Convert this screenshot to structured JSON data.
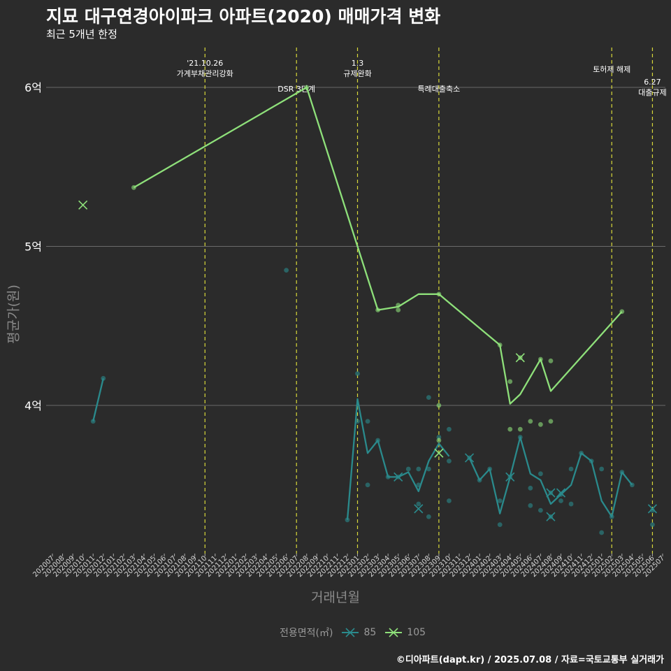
{
  "chart_data": {
    "type": "line",
    "title": "지묘 대구연경아이파크 아파트(2020) 매매가격 변화",
    "subtitle": "최근 5개년 한정",
    "xlabel": "거래년월",
    "ylabel": "평균가(원)",
    "caption": "©디아파트(dapt.kr) / 2025.07.08 / 자료=국토교통부 실거래가",
    "legend_title": "전용면적(㎡)",
    "grid": true,
    "legend_position": "bottom",
    "x_ticks": [
      "202007",
      "202008",
      "202009",
      "202010",
      "202011",
      "202012",
      "202101",
      "202102",
      "202103",
      "202104",
      "202105",
      "202106",
      "202107",
      "202108",
      "202109",
      "202110",
      "202111",
      "202112",
      "202201",
      "202202",
      "202203",
      "202204",
      "202205",
      "202206",
      "202207",
      "202208",
      "202209",
      "202210",
      "202211",
      "202212",
      "202301",
      "202302",
      "202303",
      "202304",
      "202305",
      "202306",
      "202307",
      "202308",
      "202309",
      "202310",
      "202311",
      "202312",
      "202401",
      "202402",
      "202403",
      "202404",
      "202405",
      "202406",
      "202407",
      "202408",
      "202409",
      "202410",
      "202411",
      "202412",
      "202501",
      "202502",
      "202503",
      "202504",
      "202505",
      "202506",
      "202507"
    ],
    "y_ticks": [
      {
        "value": 4,
        "label": "4억"
      },
      {
        "value": 5,
        "label": "5억"
      },
      {
        "value": 6,
        "label": "6억"
      }
    ],
    "ylim": [
      3.05,
      6.25
    ],
    "events": [
      {
        "x": "202110",
        "lines": [
          "'21.10.26",
          "가계부채관리강화"
        ],
        "pos": "top"
      },
      {
        "x": "202207",
        "lines": [
          "DSR 3단계"
        ],
        "pos": "low"
      },
      {
        "x": "202301",
        "lines": [
          "1.3",
          "규제완화"
        ],
        "pos": "top"
      },
      {
        "x": "202309",
        "lines": [
          "특례대출축소"
        ],
        "pos": "low"
      },
      {
        "x": "202502",
        "lines": [
          "토허제 해제"
        ],
        "pos": "mid"
      },
      {
        "x": "202506",
        "lines": [
          "6.27",
          "대출규제"
        ],
        "pos": "right"
      }
    ],
    "series": [
      {
        "name": "85",
        "color": "#2a8a8c",
        "segments": [
          [
            [
              "202011",
              3.9
            ],
            [
              "202012",
              4.17
            ]
          ],
          [
            [
              "202212",
              3.28
            ],
            [
              "202301",
              4.04
            ],
            [
              "202302",
              3.7
            ],
            [
              "202303",
              3.78
            ],
            [
              "202304",
              3.55
            ],
            [
              "202305",
              3.55
            ],
            [
              "202306",
              3.58
            ],
            [
              "202307",
              3.46
            ],
            [
              "202308",
              3.65
            ],
            [
              "202309",
              3.76
            ],
            [
              "202310",
              3.68
            ]
          ],
          [
            [
              "202312",
              3.67
            ],
            [
              "202401",
              3.53
            ],
            [
              "202402",
              3.6
            ],
            [
              "202403",
              3.32
            ],
            [
              "202404",
              3.55
            ],
            [
              "202405",
              3.8
            ],
            [
              "202406",
              3.57
            ],
            [
              "202407",
              3.53
            ],
            [
              "202408",
              3.38
            ],
            [
              "202409",
              3.44
            ],
            [
              "202410",
              3.5
            ],
            [
              "202411",
              3.7
            ],
            [
              "202412",
              3.65
            ],
            [
              "202501",
              3.4
            ],
            [
              "202502",
              3.3
            ],
            [
              "202503",
              3.58
            ],
            [
              "202504",
              3.5
            ]
          ]
        ],
        "points": [
          [
            "202011",
            3.9
          ],
          [
            "202012",
            4.17
          ],
          [
            "202206",
            4.85
          ],
          [
            "202212",
            3.28
          ],
          [
            "202301",
            4.2
          ],
          [
            "202301",
            3.9
          ],
          [
            "202302",
            3.9
          ],
          [
            "202302",
            3.5
          ],
          [
            "202303",
            3.78
          ],
          [
            "202304",
            3.55
          ],
          [
            "202305",
            3.55
          ],
          [
            "202306",
            3.6
          ],
          [
            "202307",
            3.6
          ],
          [
            "202307",
            3.5
          ],
          [
            "202307",
            3.38
          ],
          [
            "202308",
            4.05
          ],
          [
            "202308",
            3.6
          ],
          [
            "202308",
            3.3
          ],
          [
            "202309",
            3.8
          ],
          [
            "202310",
            3.85
          ],
          [
            "202310",
            3.65
          ],
          [
            "202310",
            3.4
          ],
          [
            "202312",
            3.67
          ],
          [
            "202401",
            3.53
          ],
          [
            "202402",
            3.6
          ],
          [
            "202403",
            3.4
          ],
          [
            "202403",
            3.25
          ],
          [
            "202404",
            3.55
          ],
          [
            "202405",
            3.8
          ],
          [
            "202406",
            3.48
          ],
          [
            "202406",
            3.37
          ],
          [
            "202407",
            3.57
          ],
          [
            "202407",
            3.34
          ],
          [
            "202408",
            3.45
          ],
          [
            "202408",
            3.3
          ],
          [
            "202409",
            3.4
          ],
          [
            "202409",
            3.44
          ],
          [
            "202410",
            3.6
          ],
          [
            "202410",
            3.38
          ],
          [
            "202411",
            3.7
          ],
          [
            "202412",
            3.65
          ],
          [
            "202501",
            3.6
          ],
          [
            "202501",
            3.2
          ],
          [
            "202502",
            3.3
          ],
          [
            "202503",
            3.58
          ],
          [
            "202504",
            3.5
          ],
          [
            "202506",
            3.34
          ],
          [
            "202506",
            3.25
          ]
        ],
        "crosses": [
          [
            "202305",
            3.55
          ],
          [
            "202307",
            3.35
          ],
          [
            "202312",
            3.67
          ],
          [
            "202404",
            3.55
          ],
          [
            "202408",
            3.3
          ],
          [
            "202408",
            3.45
          ],
          [
            "202409",
            3.45
          ],
          [
            "202506",
            3.35
          ]
        ]
      },
      {
        "name": "105",
        "color": "#8ee07a",
        "segments": [
          [
            [
              "202103",
              5.37
            ],
            [
              "202208",
              6.0
            ],
            [
              "202301",
              5.0
            ],
            [
              "202303",
              4.6
            ],
            [
              "202305",
              4.62
            ],
            [
              "202307",
              4.7
            ],
            [
              "202309",
              4.7
            ],
            [
              "202403",
              4.38
            ],
            [
              "202404",
              4.01
            ],
            [
              "202405",
              4.07
            ],
            [
              "202407",
              4.29
            ],
            [
              "202408",
              4.09
            ],
            [
              "202503",
              4.59
            ]
          ]
        ],
        "points": [
          [
            "202103",
            5.37
          ],
          [
            "202208",
            6.0
          ],
          [
            "202303",
            4.6
          ],
          [
            "202305",
            4.63
          ],
          [
            "202305",
            4.6
          ],
          [
            "202309",
            4.7
          ],
          [
            "202309",
            4.0
          ],
          [
            "202309",
            3.78
          ],
          [
            "202403",
            4.38
          ],
          [
            "202404",
            4.15
          ],
          [
            "202404",
            3.85
          ],
          [
            "202405",
            4.3
          ],
          [
            "202405",
            3.85
          ],
          [
            "202406",
            3.9
          ],
          [
            "202407",
            4.29
          ],
          [
            "202407",
            3.88
          ],
          [
            "202408",
            4.28
          ],
          [
            "202408",
            3.9
          ],
          [
            "202503",
            4.59
          ]
        ],
        "crosses": [
          [
            "202010",
            5.26
          ],
          [
            "202309",
            3.7
          ],
          [
            "202405",
            4.3
          ]
        ]
      }
    ]
  }
}
